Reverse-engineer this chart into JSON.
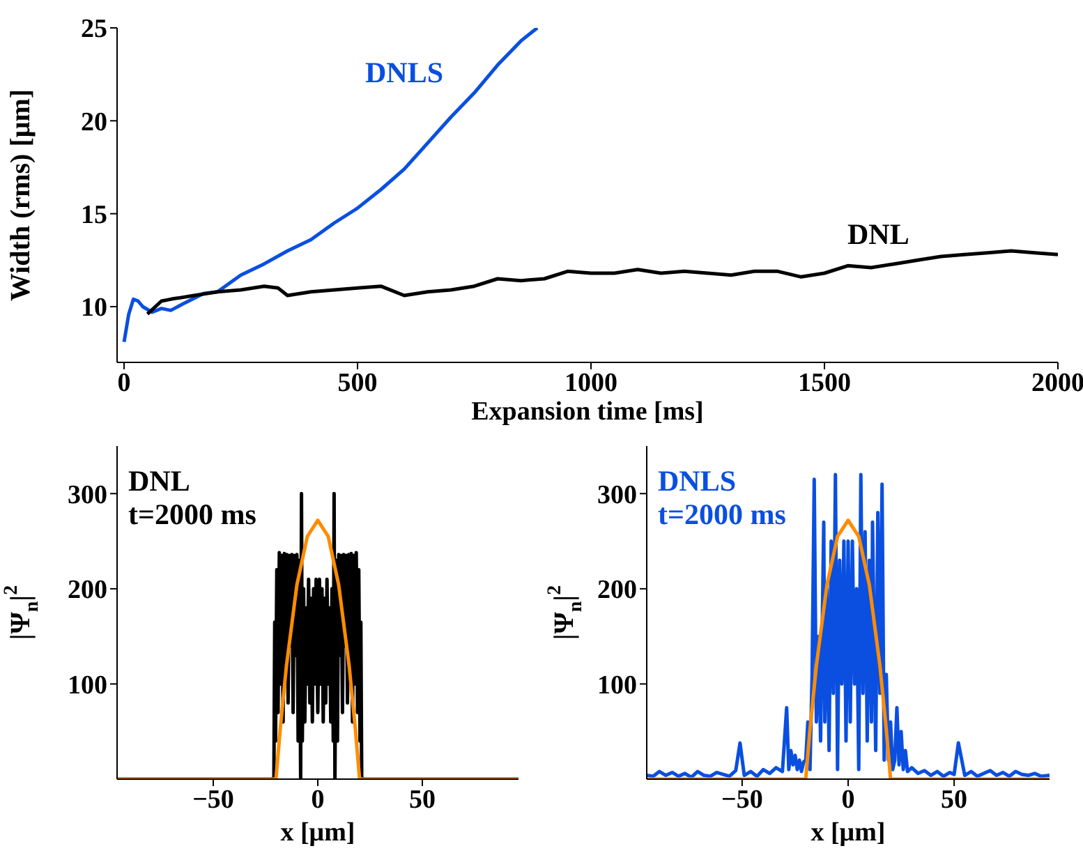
{
  "chart_data": [
    {
      "type": "line",
      "xlabel": "Expansion time [ms]",
      "ylabel": "Width (rms) [μm]",
      "xlim": [
        -15,
        2000
      ],
      "ylim": [
        7,
        25
      ],
      "xticks": [
        0,
        500,
        1000,
        1500,
        2000
      ],
      "yticks": [
        10,
        15,
        20,
        25
      ],
      "grid": false,
      "series": [
        {
          "name": "DNLS",
          "color": "#0a4fe0",
          "x": [
            0,
            10,
            20,
            30,
            40,
            60,
            80,
            100,
            130,
            170,
            200,
            250,
            300,
            350,
            400,
            450,
            500,
            550,
            600,
            650,
            700,
            750,
            800,
            850,
            885
          ],
          "values": [
            8.1,
            9.6,
            10.4,
            10.3,
            10.0,
            9.7,
            9.9,
            9.8,
            10.2,
            10.7,
            10.8,
            11.7,
            12.3,
            13.0,
            13.6,
            14.5,
            15.3,
            16.3,
            17.4,
            18.8,
            20.2,
            21.5,
            23.0,
            24.3,
            25
          ]
        },
        {
          "name": "DNL",
          "color": "#000000",
          "x": [
            50,
            80,
            100,
            150,
            200,
            250,
            300,
            330,
            350,
            400,
            450,
            500,
            550,
            600,
            650,
            700,
            750,
            800,
            850,
            900,
            950,
            1000,
            1050,
            1100,
            1150,
            1200,
            1250,
            1300,
            1350,
            1400,
            1450,
            1500,
            1550,
            1600,
            1650,
            1700,
            1750,
            1800,
            1850,
            1900,
            1950,
            2000
          ],
          "values": [
            9.6,
            10.3,
            10.4,
            10.6,
            10.8,
            10.9,
            11.1,
            11.0,
            10.6,
            10.8,
            10.9,
            11.0,
            11.1,
            10.6,
            10.8,
            10.9,
            11.1,
            11.5,
            11.4,
            11.5,
            11.9,
            11.8,
            11.8,
            12.0,
            11.8,
            11.9,
            11.8,
            11.7,
            11.9,
            11.9,
            11.6,
            11.8,
            12.2,
            12.1,
            12.3,
            12.5,
            12.7,
            12.8,
            12.9,
            13.0,
            12.9,
            12.8
          ]
        }
      ]
    },
    {
      "type": "line",
      "xlabel": "x  [μm]",
      "ylabel": "|Ψ$_{n}$|$^{2}$",
      "xlim": [
        -96,
        96
      ],
      "ylim": [
        0,
        350
      ],
      "xticks": [
        -50,
        0,
        50
      ],
      "yticks": [
        100,
        200,
        300
      ],
      "grid": false,
      "annotations": [
        "t=2000 ms"
      ],
      "series": [
        {
          "name": "DNL",
          "color": "#000000",
          "x": [
            -96,
            -22,
            -21,
            -20.6,
            -20.2,
            -19.6,
            -19,
            -18.4,
            -17.8,
            -17.2,
            -16.6,
            -16,
            -15.4,
            -14.8,
            -14.2,
            -13.6,
            -13,
            -12.4,
            -11.8,
            -11.2,
            -10.6,
            -10,
            -9.4,
            -8.8,
            -8.2,
            -7.8,
            -7.4,
            -6.8,
            -6.2,
            -5.6,
            -5,
            -4.4,
            -3.8,
            -3.2,
            -2.6,
            -2,
            -1.4,
            -0.8,
            0,
            0.8,
            1.4,
            2,
            2.6,
            3.2,
            3.8,
            4.4,
            5,
            5.6,
            6.2,
            6.8,
            7.4,
            7.8,
            8.2,
            8.8,
            9.4,
            10,
            10.6,
            11.2,
            11.8,
            12.4,
            13,
            13.6,
            14.2,
            14.8,
            15.4,
            16,
            16.6,
            17.2,
            17.8,
            18.4,
            19,
            19.6,
            20.2,
            20.6,
            21,
            22,
            96
          ],
          "values": [
            0,
            0,
            2,
            165,
            40,
            220,
            70,
            238,
            100,
            235,
            60,
            237,
            120,
            236,
            80,
            235,
            140,
            236,
            70,
            235,
            130,
            236,
            40,
            230,
            0,
            300,
            40,
            200,
            60,
            180,
            100,
            210,
            80,
            190,
            60,
            200,
            100,
            210,
            70,
            210,
            100,
            200,
            60,
            190,
            80,
            210,
            100,
            180,
            60,
            200,
            40,
            300,
            0,
            230,
            40,
            236,
            130,
            235,
            70,
            236,
            140,
            235,
            80,
            236,
            120,
            237,
            60,
            235,
            100,
            238,
            70,
            220,
            40,
            165,
            2,
            0,
            0
          ]
        },
        {
          "color": "#ff8c00",
          "x": [
            -96,
            -20,
            -18,
            -15,
            -10,
            -5,
            0,
            5,
            10,
            15,
            18,
            20,
            96
          ],
          "values": [
            0,
            0,
            52,
            119,
            204,
            255,
            272,
            255,
            204,
            119,
            52,
            0,
            0
          ]
        }
      ]
    },
    {
      "type": "line",
      "xlabel": "x  [μm]",
      "ylabel": "|Ψ$_{n}$|$^{2}$",
      "xlim": [
        -95,
        95
      ],
      "ylim": [
        0,
        350
      ],
      "xticks": [
        -50,
        0,
        50
      ],
      "yticks": [
        100,
        200,
        300
      ],
      "grid": false,
      "annotations": [
        "t=2000 ms"
      ],
      "series": [
        {
          "name": "DNLS",
          "color": "#0a4fe0",
          "x": [
            -95,
            -92,
            -89,
            -86,
            -83,
            -80,
            -77,
            -74,
            -71,
            -68,
            -65,
            -62,
            -59,
            -56,
            -53,
            -51,
            -49,
            -46,
            -43,
            -40,
            -37,
            -34,
            -31,
            -29,
            -28,
            -27,
            -26,
            -25,
            -24,
            -23,
            -22,
            -21,
            -20,
            -19,
            -18,
            -17,
            -16,
            -15,
            -14,
            -13,
            -11.5,
            -11,
            -10,
            -9,
            -8,
            -7,
            -6,
            -5,
            -4,
            -3,
            -2,
            -1,
            0,
            1,
            2,
            3,
            4,
            5,
            6,
            7,
            8,
            9,
            10,
            11,
            11.5,
            13,
            14,
            15,
            16,
            17,
            18,
            19,
            20,
            21,
            22,
            23,
            24,
            25,
            26,
            27,
            28,
            30,
            33,
            36,
            39,
            42,
            45,
            48,
            50,
            52,
            55,
            58,
            61,
            64,
            67,
            70,
            73,
            76,
            79,
            82,
            85,
            88,
            91,
            95
          ],
          "values": [
            4,
            3,
            8,
            4,
            7,
            3,
            6,
            2,
            8,
            4,
            3,
            7,
            5,
            3,
            9,
            38,
            4,
            8,
            3,
            10,
            6,
            12,
            8,
            75,
            10,
            30,
            15,
            25,
            10,
            20,
            8,
            18,
            20,
            60,
            10,
            110,
            315,
            60,
            150,
            40,
            270,
            60,
            200,
            30,
            250,
            90,
            320,
            10,
            230,
            100,
            250,
            40,
            250,
            60,
            250,
            100,
            200,
            10,
            320,
            90,
            260,
            40,
            230,
            60,
            270,
            30,
            280,
            90,
            310,
            20,
            110,
            20,
            60,
            10,
            20,
            75,
            15,
            50,
            10,
            30,
            8,
            12,
            6,
            9,
            4,
            8,
            3,
            7,
            5,
            38,
            4,
            8,
            3,
            6,
            9,
            4,
            7,
            3,
            8,
            5,
            4,
            6,
            3,
            4
          ]
        },
        {
          "color": "#ff8c00",
          "x": [
            -95,
            -20,
            -18,
            -15,
            -10,
            -5,
            0,
            5,
            10,
            15,
            18,
            20,
            95
          ],
          "values": [
            0,
            0,
            52,
            119,
            204,
            255,
            272,
            255,
            204,
            119,
            52,
            0,
            0
          ]
        }
      ]
    }
  ]
}
